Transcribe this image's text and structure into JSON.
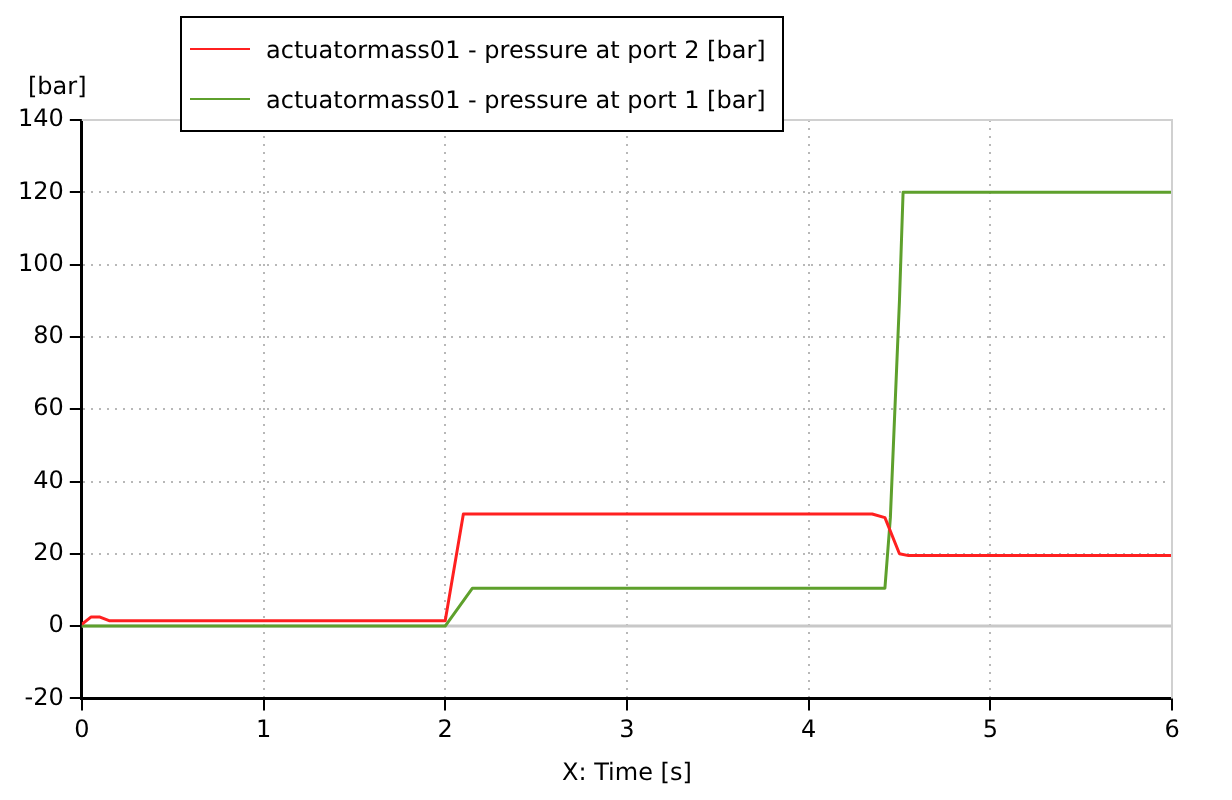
{
  "chart_data": {
    "type": "line",
    "xlabel": "X: Time [s]",
    "ylabel": "[bar]",
    "xlim": [
      0,
      6
    ],
    "xticks": [
      0,
      1,
      2,
      3,
      4,
      5,
      6
    ],
    "ylim": [
      -20,
      140
    ],
    "yticks": [
      -20,
      0,
      20,
      40,
      60,
      80,
      100,
      120,
      140
    ],
    "grid": true,
    "legend": "top left",
    "marker": "none",
    "line_style": "solid",
    "ref_lines": [
      {
        "axis": "y",
        "value": 0,
        "color": "#c8c8c8"
      }
    ],
    "series": [
      {
        "name": "actuatormass01 - pressure at port 2 [bar]",
        "color": "#ff2020",
        "x": [
          0,
          0.05,
          0.1,
          0.15,
          2.0,
          2.1,
          4.35,
          4.42,
          4.5,
          4.55,
          6
        ],
        "values": [
          0.5,
          2.5,
          2.5,
          1.5,
          1.5,
          31,
          31,
          30,
          20,
          19.5,
          19.5
        ]
      },
      {
        "name": "actuatormass01 - pressure at port 1 [bar]",
        "color": "#5ea02c",
        "x": [
          0,
          2.0,
          2.15,
          4.42,
          4.45,
          4.5,
          4.52,
          6
        ],
        "values": [
          0,
          0,
          10.5,
          10.5,
          30,
          90,
          120,
          120
        ]
      }
    ]
  }
}
